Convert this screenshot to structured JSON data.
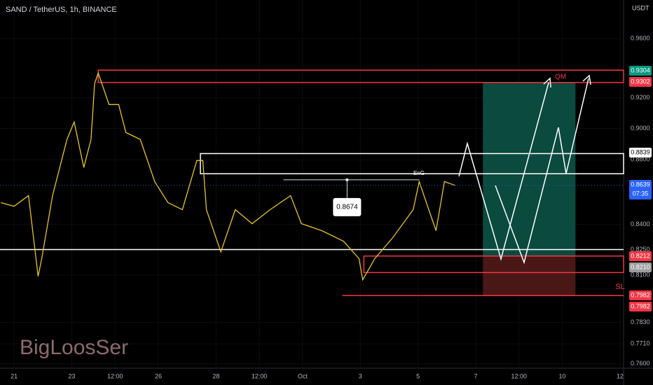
{
  "chart_data": {
    "type": "line",
    "title": "SAND / TetherUS, 1h, BINANCE",
    "y_axis_label": "USDT",
    "watermark": "BigLoosSer",
    "log_scale": true,
    "x": [
      -11,
      0,
      12,
      20,
      23,
      32,
      44,
      50,
      58,
      64,
      67,
      70,
      79,
      87,
      93,
      105,
      117,
      128,
      140,
      152,
      157,
      160,
      172,
      184,
      198,
      213,
      230,
      239,
      256,
      274,
      287,
      290,
      300,
      315,
      332,
      337,
      347,
      351,
      358,
      367
    ],
    "series": [
      {
        "color": "#e8c422",
        "values": [
          0.8533,
          0.8511,
          0.8576,
          0.8093,
          0.8196,
          0.8576,
          0.8929,
          0.9042,
          0.8751,
          0.8929,
          0.9295,
          0.9366,
          0.9156,
          0.9156,
          0.8974,
          0.8929,
          0.8663,
          0.8533,
          0.849,
          0.8795,
          0.8795,
          0.849,
          0.8237,
          0.849,
          0.8405,
          0.849,
          0.8576,
          0.8405,
          0.8363,
          0.83,
          0.8196,
          0.8073,
          0.8196,
          0.8321,
          0.849,
          0.8663,
          0.8447,
          0.8363,
          0.8663,
          0.8639
        ]
      }
    ],
    "xlim": [
      -11.7,
      507
    ],
    "ylim": [
      0.758,
      0.987
    ],
    "xticks": [
      {
        "value": 0,
        "label": "21"
      },
      {
        "value": 48,
        "label": "23"
      },
      {
        "value": 84,
        "label": "12:00"
      },
      {
        "value": 120,
        "label": "26"
      },
      {
        "value": 168,
        "label": "28"
      },
      {
        "value": 204,
        "label": "12:00"
      },
      {
        "value": 240,
        "label": "Oct"
      },
      {
        "value": 288,
        "label": "3"
      },
      {
        "value": 336,
        "label": "5"
      },
      {
        "value": 384,
        "label": "7"
      },
      {
        "value": 420,
        "label": "12:00"
      },
      {
        "value": 456,
        "label": "10"
      },
      {
        "value": 504,
        "label": "12"
      }
    ],
    "yticks": [
      {
        "value": 0.96,
        "label": "0.9600"
      },
      {
        "value": 0.92,
        "label": "0.9200"
      },
      {
        "value": 0.9,
        "label": "0.9000"
      },
      {
        "value": 0.88,
        "label": "0.8800"
      },
      {
        "value": 0.84,
        "label": "0.8400"
      },
      {
        "value": 0.825,
        "label": "0.8250"
      },
      {
        "value": 0.81,
        "label": "0.8100"
      },
      {
        "value": 0.783,
        "label": "0.7830"
      },
      {
        "value": 0.771,
        "label": "0.7710"
      },
      {
        "value": 0.76,
        "label": "0.7600"
      }
    ],
    "zones": [
      {
        "top": 0.9385,
        "bottom": 0.9302,
        "from": 70,
        "color": "#f23645"
      },
      {
        "top": 0.8839,
        "bottom": 0.8712,
        "from": 155,
        "color": "#ffffff"
      },
      {
        "top": 0.8212,
        "bottom": 0.8115,
        "from": 291,
        "color": "#f23645"
      }
    ],
    "levels": [
      {
        "value": 0.825,
        "from": -11.7,
        "color": "#ffffff"
      },
      {
        "value": 0.7982,
        "from": 273,
        "color": "#f23645"
      }
    ],
    "position": {
      "from": 390,
      "to": 467,
      "target": 0.9302,
      "entry": 0.8212,
      "stop": 0.7982
    },
    "callout": {
      "value": 0.8674,
      "from": 224,
      "to": 337,
      "at": 277
    },
    "price_tags": [
      {
        "label": "0.9304",
        "color": "#089981"
      },
      {
        "label": "0.9302",
        "color": "#f23645"
      },
      {
        "label": "0.8839",
        "color": "#ffffff"
      },
      {
        "label": "0.8639",
        "sub": "07:35",
        "color": "#2962ff"
      },
      {
        "label": "0.8212",
        "color": "#f23645"
      },
      {
        "label": "0.8210",
        "color": "#9e9e9e"
      },
      {
        "label": "0.7982",
        "color": "#f23645"
      },
      {
        "label": "0.7982",
        "color": "#f23645"
      }
    ],
    "annotations": [
      "QM",
      "SL",
      "EnG"
    ]
  }
}
